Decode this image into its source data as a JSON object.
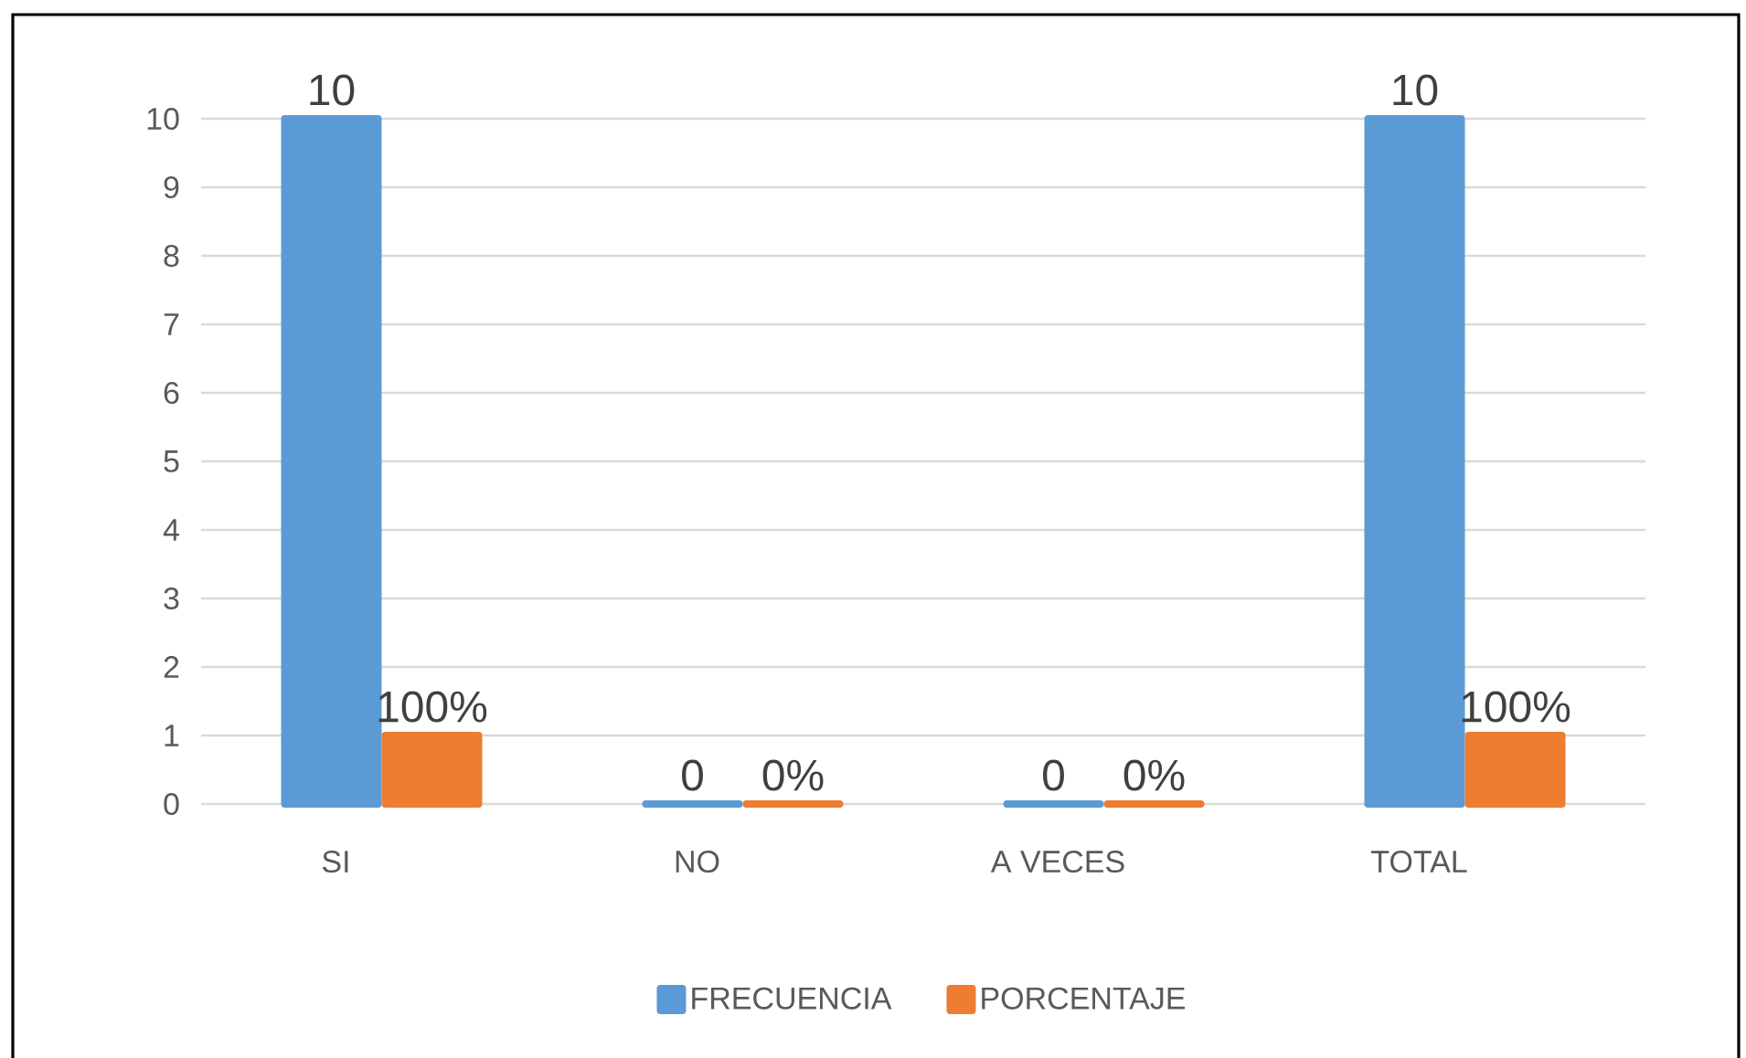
{
  "chart_data": {
    "type": "bar",
    "categories": [
      "SI",
      "NO",
      "A VECES",
      "TOTAL"
    ],
    "series": [
      {
        "name": "FRECUENCIA",
        "color": "#5b9bd5",
        "values": [
          10,
          0,
          0,
          10
        ],
        "value_labels": [
          "10",
          "0",
          "0",
          "10"
        ]
      },
      {
        "name": "PORCENTAJE",
        "color": "#ed7d31",
        "values": [
          1,
          0,
          0,
          1
        ],
        "value_labels": [
          "100%",
          "0%",
          "0%",
          "100%"
        ]
      }
    ],
    "ylim": [
      0,
      10
    ],
    "yticks": [
      0,
      1,
      2,
      3,
      4,
      5,
      6,
      7,
      8,
      9,
      10
    ],
    "grid": "y",
    "legend": "bottom"
  }
}
